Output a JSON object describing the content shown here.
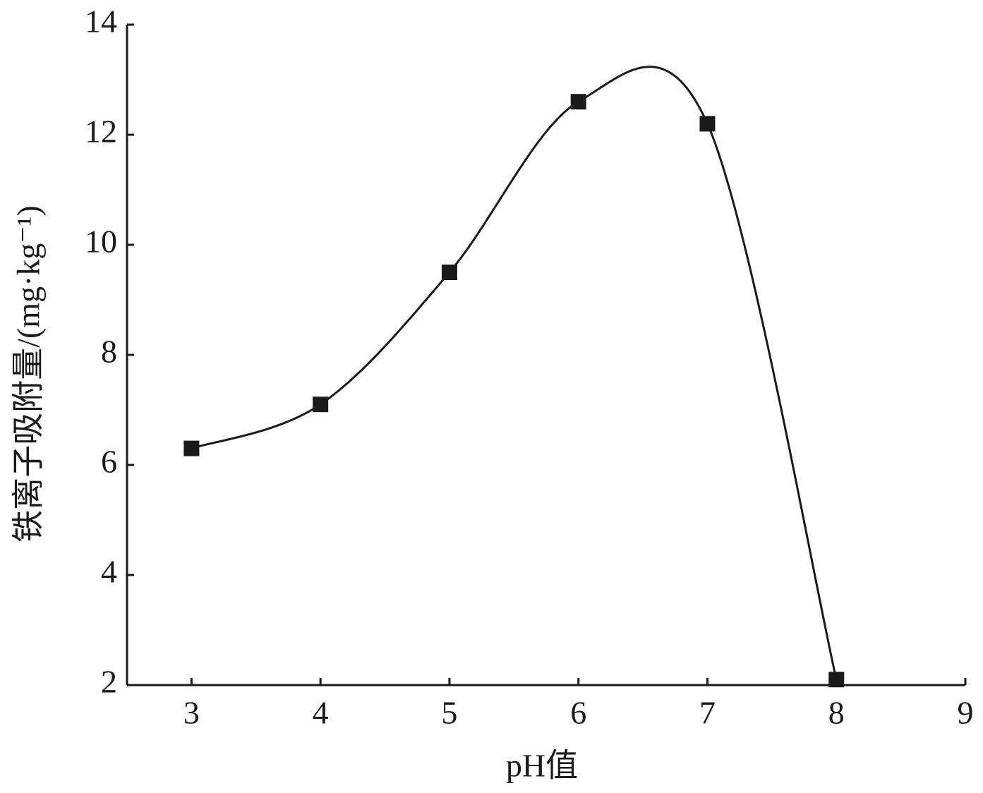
{
  "chart_data": {
    "type": "line",
    "x_label": "pH值",
    "y_label": "铁离子吸附量/(mg·kg⁻¹)",
    "x": [
      3,
      4,
      5,
      6,
      7,
      8
    ],
    "values": [
      6.3,
      7.1,
      9.5,
      12.6,
      12.2,
      2.1
    ],
    "color": "#1a1a1a",
    "xlim": [
      2.5,
      9
    ],
    "xticks": [
      3,
      4,
      5,
      6,
      7,
      8,
      9
    ],
    "ylim": [
      2,
      14
    ],
    "yticks": [
      2,
      4,
      6,
      8,
      10,
      12,
      14
    ],
    "smooth": true,
    "marker": "square"
  }
}
